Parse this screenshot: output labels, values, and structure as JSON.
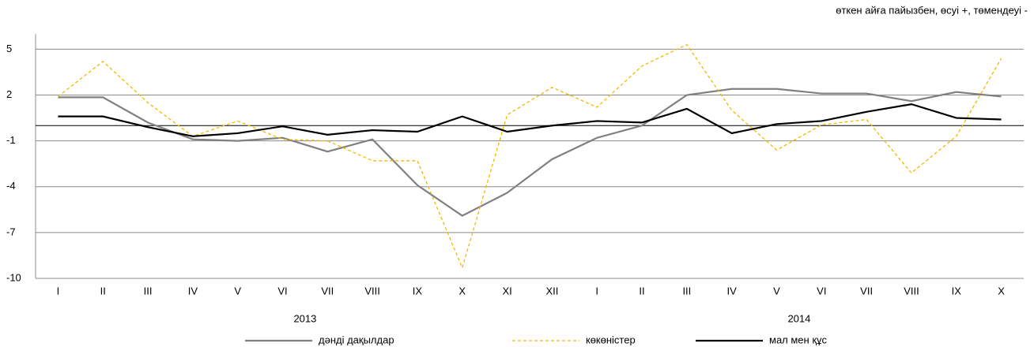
{
  "chart_data": {
    "type": "line",
    "subtitle": "өткен айға пайызбен, өсуі +, төмендеуі -",
    "categories": [
      "I",
      "II",
      "III",
      "IV",
      "V",
      "VI",
      "VII",
      "VIII",
      "IX",
      "X",
      "XI",
      "XII",
      "I",
      "II",
      "III",
      "IV",
      "V",
      "VI",
      "VII",
      "VIII",
      "IX",
      "X"
    ],
    "groups": [
      "2013",
      "2014"
    ],
    "ylim": [
      -10,
      6
    ],
    "yticks": [
      5,
      2,
      -1,
      -4,
      -7,
      -10
    ],
    "grid": true,
    "legend": "bottom",
    "series": [
      {
        "name": "дәнді дақылдар",
        "color": "#808080",
        "style": "solid",
        "values": [
          1.85,
          1.85,
          0.2,
          -0.9,
          -1.0,
          -0.8,
          -1.7,
          -0.9,
          -3.9,
          -5.9,
          -4.4,
          -2.2,
          -0.8,
          0,
          2.0,
          2.4,
          2.4,
          2.1,
          2.1,
          1.6,
          2.2,
          1.9
        ]
      },
      {
        "name": "көкөністер",
        "color": "#f5b800",
        "style": "dashed",
        "values": [
          1.9,
          4.2,
          1.5,
          -0.7,
          0.3,
          -0.9,
          -1.0,
          -2.3,
          -2.3,
          -9.3,
          0.7,
          2.5,
          1.2,
          3.9,
          5.3,
          1.0,
          -1.6,
          0.05,
          0.4,
          -3.1,
          -0.7,
          4.4
        ]
      },
      {
        "name": "мал мен құс",
        "color": "#000000",
        "style": "solid",
        "values": [
          0.6,
          0.6,
          -0.1,
          -0.7,
          -0.5,
          -0.05,
          -0.6,
          -0.3,
          -0.4,
          0.6,
          -0.4,
          0,
          0.3,
          0.2,
          1.1,
          -0.5,
          0.1,
          0.3,
          0.9,
          1.4,
          0.5,
          0.4
        ]
      }
    ]
  }
}
